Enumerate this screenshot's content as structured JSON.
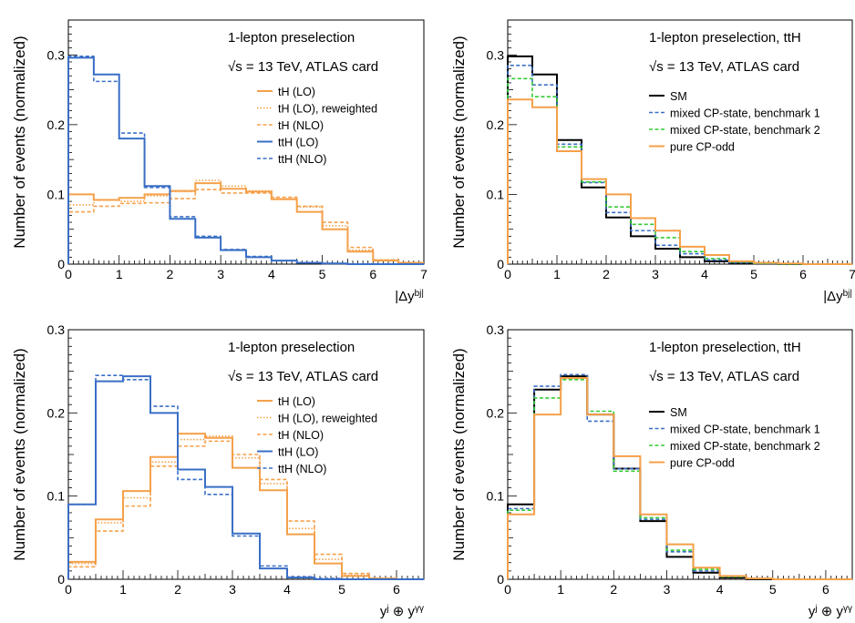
{
  "colors": {
    "orange": "#F5A04A",
    "blue": "#3A6FC6",
    "green": "#33CC33",
    "black": "#000000"
  },
  "chart_data": [
    {
      "type": "step",
      "position": "top-left",
      "title": "1-lepton preselection",
      "subtitle": "√s = 13 TeV, ATLAS card",
      "ylabel": "Number of events (normalized)",
      "xlabel": "|Δy^bj|",
      "xlim": [
        0,
        7
      ],
      "ylim": [
        0,
        0.35
      ],
      "x_ticks": [
        "0",
        "1",
        "2",
        "3",
        "4",
        "5",
        "6",
        "7"
      ],
      "y_ticks": [
        "0",
        "0.1",
        "0.2",
        "0.3"
      ],
      "y_tick_values": [
        0,
        0.1,
        0.2,
        0.3
      ],
      "bin_edges": [
        0,
        0.5,
        1,
        1.5,
        2,
        2.5,
        3,
        3.5,
        4,
        4.5,
        5,
        5.5,
        6,
        6.5,
        7
      ],
      "legend": "top-right",
      "series": [
        {
          "name": "tH (LO)",
          "color": "orange",
          "style": "solid",
          "values": [
            0.1,
            0.092,
            0.095,
            0.1,
            0.105,
            0.116,
            0.108,
            0.104,
            0.093,
            0.075,
            0.05,
            0.018,
            0.005,
            0.002
          ]
        },
        {
          "name": "tH (LO), reweighted",
          "color": "orange",
          "style": "dotted",
          "values": [
            0.085,
            0.092,
            0.09,
            0.098,
            0.104,
            0.12,
            0.112,
            0.105,
            0.094,
            0.082,
            0.055,
            0.02,
            0.006,
            0.002
          ]
        },
        {
          "name": "tH (NLO)",
          "color": "orange",
          "style": "dashed",
          "values": [
            0.075,
            0.083,
            0.087,
            0.088,
            0.094,
            0.107,
            0.102,
            0.102,
            0.096,
            0.083,
            0.06,
            0.024,
            0.006,
            0.002
          ]
        },
        {
          "name": "ttH (LO)",
          "color": "blue",
          "style": "solid",
          "values": [
            0.296,
            0.272,
            0.18,
            0.112,
            0.065,
            0.038,
            0.02,
            0.01,
            0.005,
            0.002,
            0.001,
            0.0,
            0.0,
            0.0
          ]
        },
        {
          "name": "ttH (NLO)",
          "color": "blue",
          "style": "dashed",
          "values": [
            0.298,
            0.262,
            0.188,
            0.11,
            0.068,
            0.04,
            0.021,
            0.011,
            0.005,
            0.002,
            0.001,
            0.0,
            0.0,
            0.0
          ]
        }
      ]
    },
    {
      "type": "step",
      "position": "top-right",
      "title": "1-lepton preselection, ttH",
      "subtitle": "√s = 13 TeV, ATLAS card",
      "ylabel": "Number of events (normalized)",
      "xlabel": "|Δy^bj|",
      "xlim": [
        0,
        7
      ],
      "ylim": [
        0,
        0.35
      ],
      "x_ticks": [
        "0",
        "1",
        "2",
        "3",
        "4",
        "5",
        "6",
        "7"
      ],
      "y_ticks": [
        "0",
        "0.1",
        "0.2",
        "0.3"
      ],
      "y_tick_values": [
        0,
        0.1,
        0.2,
        0.3
      ],
      "bin_edges": [
        0,
        0.5,
        1,
        1.5,
        2,
        2.5,
        3,
        3.5,
        4,
        4.5,
        5,
        5.5,
        6,
        6.5,
        7
      ],
      "legend": "center-right",
      "series": [
        {
          "name": "SM",
          "color": "black",
          "style": "solid",
          "values": [
            0.298,
            0.272,
            0.178,
            0.11,
            0.067,
            0.04,
            0.022,
            0.01,
            0.004,
            0.002,
            0.001,
            0.0,
            0.0,
            0.0
          ]
        },
        {
          "name": "mixed CP-state, benchmark 1",
          "color": "blue",
          "style": "dashed",
          "values": [
            0.285,
            0.257,
            0.172,
            0.117,
            0.074,
            0.048,
            0.027,
            0.015,
            0.006,
            0.002,
            0.001,
            0.0,
            0.0,
            0.0
          ]
        },
        {
          "name": "mixed CP-state, benchmark 2",
          "color": "green",
          "style": "dashed",
          "values": [
            0.266,
            0.24,
            0.168,
            0.118,
            0.082,
            0.057,
            0.038,
            0.018,
            0.008,
            0.003,
            0.001,
            0.0,
            0.0,
            0.0
          ]
        },
        {
          "name": "pure CP-odd",
          "color": "orange",
          "style": "solid",
          "values": [
            0.236,
            0.225,
            0.162,
            0.122,
            0.1,
            0.066,
            0.048,
            0.025,
            0.013,
            0.004,
            0.002,
            0.001,
            0.0,
            0.0
          ]
        }
      ]
    },
    {
      "type": "step",
      "position": "bottom-left",
      "title": "1-lepton preselection",
      "subtitle": "√s = 13 TeV, ATLAS card",
      "ylabel": "Number of events (normalized)",
      "xlabel": "y^j ⊕ y^γγ",
      "xlim": [
        0,
        6.5
      ],
      "ylim": [
        0,
        0.3
      ],
      "x_ticks": [
        "0",
        "1",
        "2",
        "3",
        "4",
        "5",
        "6"
      ],
      "y_ticks": [
        "0",
        "0.1",
        "0.2",
        "0.3"
      ],
      "y_tick_values": [
        0,
        0.1,
        0.2,
        0.3
      ],
      "bin_edges": [
        0,
        0.5,
        1,
        1.5,
        2,
        2.5,
        3,
        3.5,
        4,
        4.5,
        5,
        5.5,
        6,
        6.5
      ],
      "legend": "center-right",
      "series": [
        {
          "name": "tH (LO)",
          "color": "orange",
          "style": "solid",
          "values": [
            0.021,
            0.072,
            0.106,
            0.147,
            0.175,
            0.17,
            0.134,
            0.107,
            0.054,
            0.019,
            0.004,
            0.001,
            0.0
          ]
        },
        {
          "name": "tH (LO), reweighted",
          "color": "orange",
          "style": "dotted",
          "values": [
            0.019,
            0.068,
            0.098,
            0.141,
            0.168,
            0.172,
            0.146,
            0.115,
            0.061,
            0.024,
            0.005,
            0.001,
            0.0
          ]
        },
        {
          "name": "tH (NLO)",
          "color": "orange",
          "style": "dashed",
          "values": [
            0.015,
            0.058,
            0.088,
            0.136,
            0.16,
            0.166,
            0.15,
            0.12,
            0.07,
            0.03,
            0.007,
            0.001,
            0.0
          ]
        },
        {
          "name": "ttH (LO)",
          "color": "blue",
          "style": "solid",
          "values": [
            0.09,
            0.238,
            0.244,
            0.2,
            0.132,
            0.111,
            0.055,
            0.013,
            0.002,
            0.0,
            0.0,
            0.0,
            0.0
          ]
        },
        {
          "name": "ttH (NLO)",
          "color": "blue",
          "style": "dashed",
          "values": [
            0.09,
            0.245,
            0.24,
            0.208,
            0.12,
            0.102,
            0.052,
            0.016,
            0.003,
            0.001,
            0.0,
            0.0,
            0.0
          ]
        }
      ]
    },
    {
      "type": "step",
      "position": "bottom-right",
      "title": "1-lepton preselection, ttH",
      "subtitle": "√s = 13 TeV, ATLAS card",
      "ylabel": "Number of events (normalized)",
      "xlabel": "y^j ⊕ y^γγ",
      "xlim": [
        0,
        6.5
      ],
      "ylim": [
        0,
        0.3
      ],
      "x_ticks": [
        "0",
        "1",
        "2",
        "3",
        "4",
        "5",
        "6"
      ],
      "y_ticks": [
        "0",
        "0.1",
        "0.2",
        "0.3"
      ],
      "y_tick_values": [
        0,
        0.1,
        0.2,
        0.3
      ],
      "bin_edges": [
        0,
        0.5,
        1,
        1.5,
        2,
        2.5,
        3,
        3.5,
        4,
        4.5,
        5,
        5.5,
        6,
        6.5
      ],
      "legend": "center-right",
      "series": [
        {
          "name": "SM",
          "color": "black",
          "style": "solid",
          "values": [
            0.09,
            0.228,
            0.244,
            0.198,
            0.133,
            0.07,
            0.027,
            0.008,
            0.002,
            0.0,
            0.0,
            0.0,
            0.0
          ]
        },
        {
          "name": "mixed CP-state, benchmark 1",
          "color": "blue",
          "style": "dashed",
          "values": [
            0.085,
            0.232,
            0.246,
            0.19,
            0.133,
            0.072,
            0.033,
            0.01,
            0.003,
            0.001,
            0.0,
            0.0,
            0.0
          ]
        },
        {
          "name": "mixed CP-state, benchmark 2",
          "color": "green",
          "style": "dashed",
          "values": [
            0.083,
            0.218,
            0.24,
            0.202,
            0.13,
            0.074,
            0.035,
            0.012,
            0.003,
            0.001,
            0.0,
            0.0,
            0.0
          ]
        },
        {
          "name": "pure CP-odd",
          "color": "orange",
          "style": "solid",
          "values": [
            0.078,
            0.198,
            0.242,
            0.198,
            0.148,
            0.078,
            0.042,
            0.014,
            0.004,
            0.001,
            0.0,
            0.0,
            0.0
          ]
        }
      ]
    }
  ]
}
